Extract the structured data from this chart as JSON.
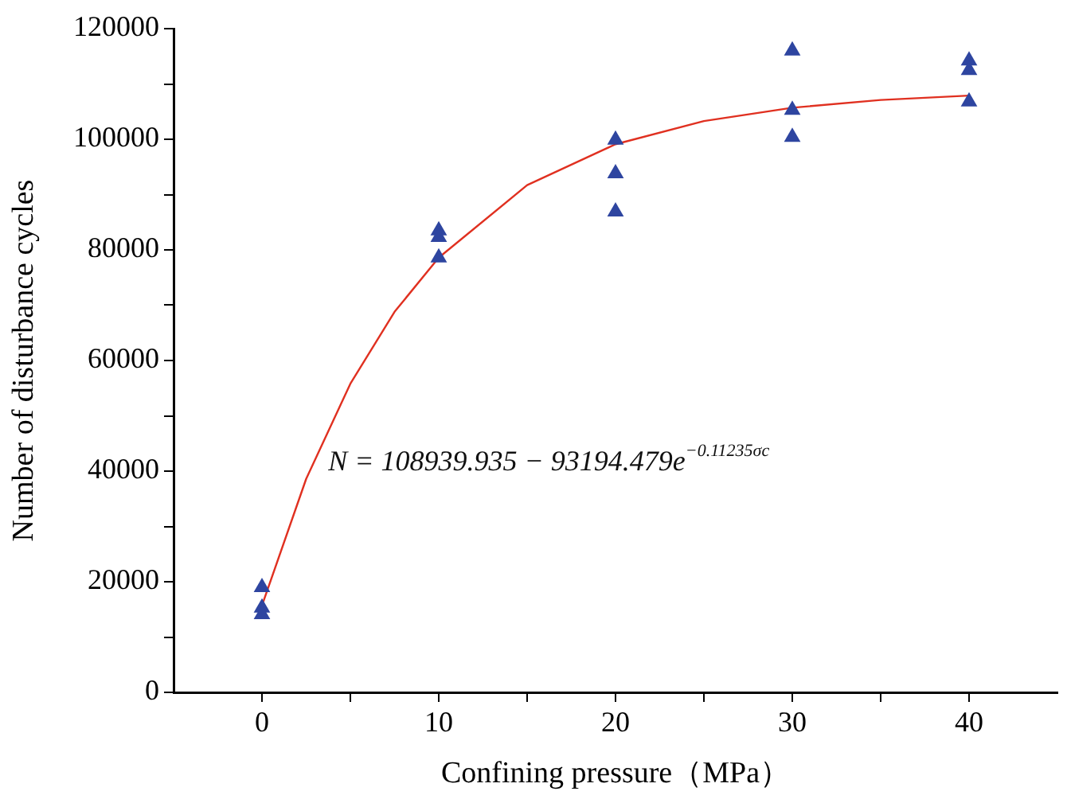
{
  "chart_data": {
    "type": "scatter",
    "xlabel": "Confining pressure（MPa）",
    "ylabel": "Number of disturbance cycles",
    "xlim": [
      -5,
      45
    ],
    "xticks": [
      0,
      {
        "value": 5,
        "label": null
      },
      10,
      {
        "value": 15,
        "label": null
      },
      20,
      {
        "value": 25,
        "label": null
      },
      30,
      {
        "value": 35,
        "label": null
      },
      40
    ],
    "ylim": [
      0,
      120000
    ],
    "yticks": [
      0,
      {
        "value": 10000,
        "label": null
      },
      20000,
      {
        "value": 30000,
        "label": null
      },
      40000,
      {
        "value": 50000,
        "label": null
      },
      60000,
      {
        "value": 70000,
        "label": null
      },
      80000,
      {
        "value": 90000,
        "label": null
      },
      100000,
      {
        "value": 110000,
        "label": null
      },
      120000
    ],
    "grid": false,
    "legend": false,
    "series": [
      {
        "color": "#2e45a0",
        "marker": "triangle",
        "x": [
          0,
          0,
          0,
          10,
          10,
          10,
          20,
          20,
          20,
          30,
          30,
          30,
          40,
          40,
          40
        ],
        "values": [
          19000,
          15300,
          14100,
          83500,
          82300,
          78600,
          99900,
          93800,
          86900,
          116000,
          105300,
          100400,
          114200,
          112500,
          106800
        ]
      },
      {
        "type": "line",
        "color": "#e03020",
        "marker": "none",
        "line_style": "solid",
        "x": [
          0,
          2.5,
          5,
          7.5,
          10,
          15,
          20,
          25,
          30,
          35,
          40
        ],
        "values": [
          15700,
          38600,
          55800,
          68800,
          78600,
          91700,
          99100,
          103300,
          105700,
          107100,
          107900
        ]
      }
    ],
    "annotations": [
      "N = 108939.935 − 93194.479e$^{−0.11235σc}$"
    ]
  }
}
